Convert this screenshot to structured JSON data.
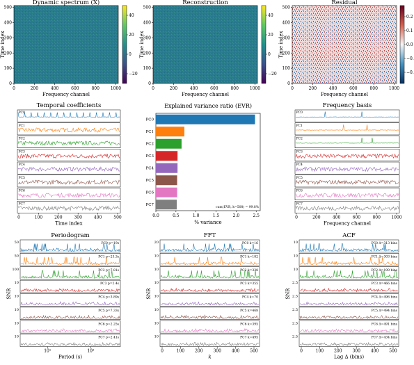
{
  "colors": {
    "pcs": [
      "#1f77b4",
      "#ff7f0e",
      "#2ca02c",
      "#d62728",
      "#9467bd",
      "#8c564b",
      "#e377c2",
      "#7f7f7f"
    ],
    "viridis_bg": "#2a7b8d",
    "residual_bg": "#f1e6e6"
  },
  "chart_data": [
    {
      "type": "heatmap",
      "title": "Dynamic spectrum (X)",
      "xlabel": "Frequency channel",
      "ylabel": "Time index",
      "xticks": [
        "0",
        "200",
        "400",
        "600",
        "800",
        "1000"
      ],
      "yticks": [
        "0",
        "100",
        "200",
        "300",
        "400",
        "500"
      ],
      "xlim": [
        0,
        1024
      ],
      "ylim": [
        0,
        512
      ],
      "colorbar_ticks": [
        "40",
        "20",
        "0",
        "−20"
      ],
      "colorbar_range": [
        -30,
        50
      ],
      "colormap": "viridis"
    },
    {
      "type": "heatmap",
      "title": "Reconstruction",
      "xlabel": "Frequency channel",
      "ylabel": "Time index",
      "xticks": [
        "0",
        "200",
        "400",
        "600",
        "800",
        "1000"
      ],
      "yticks": [
        "0",
        "100",
        "200",
        "300",
        "400",
        "500"
      ],
      "xlim": [
        0,
        1024
      ],
      "ylim": [
        0,
        512
      ],
      "colorbar_ticks": [
        "40",
        "20",
        "0",
        "−20"
      ],
      "colorbar_range": [
        -30,
        50
      ],
      "colormap": "viridis"
    },
    {
      "type": "heatmap",
      "title": "Residual",
      "xlabel": "Frequency channel",
      "ylabel": "Time index",
      "xticks": [
        "0",
        "200",
        "400",
        "600",
        "800",
        "1000"
      ],
      "yticks": [
        "0",
        "100",
        "200",
        "300",
        "400",
        "500"
      ],
      "xlim": [
        0,
        1024
      ],
      "ylim": [
        0,
        512
      ],
      "colorbar_ticks": [
        "0.2",
        "0.1",
        "0.0",
        "−0.1",
        "−0.2"
      ],
      "colorbar_range": [
        -0.28,
        0.28
      ],
      "colormap": "RdBu_r"
    },
    {
      "type": "line",
      "title": "Temporal coefficients",
      "xlabel": "Time index",
      "xticks": [
        "0",
        "100",
        "200",
        "300",
        "400",
        "500"
      ],
      "xlim": [
        0,
        512
      ],
      "series": [
        {
          "name": "PC0",
          "style": "spikes"
        },
        {
          "name": "PC1",
          "style": "noise"
        },
        {
          "name": "PC2",
          "style": "noise"
        },
        {
          "name": "PC3",
          "style": "noise"
        },
        {
          "name": "PC4",
          "style": "noise"
        },
        {
          "name": "PC5",
          "style": "noise"
        },
        {
          "name": "PC6",
          "style": "noise"
        },
        {
          "name": "PC7",
          "style": "noise"
        }
      ]
    },
    {
      "type": "bar",
      "title": "Explained variance ratio (EVR)",
      "xlabel": "% variance",
      "categories": [
        "PC0",
        "PC1",
        "PC2",
        "PC3",
        "PC4",
        "PC5",
        "PC6",
        "PC7"
      ],
      "values": [
        2.47,
        0.71,
        0.64,
        0.54,
        0.54,
        0.53,
        0.53,
        0.52
      ],
      "xlim": [
        0,
        2.6
      ],
      "xticks": [
        "0.0",
        "0.5",
        "1.0",
        "1.5",
        "2.0",
        "2.5"
      ],
      "annotation": "cum(EVR, k=508) = 99.8%"
    },
    {
      "type": "line",
      "title": "Frequency basis",
      "xlabel": "Frequency channel",
      "xticks": [
        "0",
        "200",
        "400",
        "600",
        "800",
        "1000"
      ],
      "xlim": [
        0,
        1024
      ],
      "series": [
        {
          "name": "PC0",
          "style": "spikes"
        },
        {
          "name": "PC1",
          "style": "spikes"
        },
        {
          "name": "PC2",
          "style": "spikes"
        },
        {
          "name": "PC3",
          "style": "noise"
        },
        {
          "name": "PC4",
          "style": "noise"
        },
        {
          "name": "PC5",
          "style": "noise"
        },
        {
          "name": "PC6",
          "style": "noise"
        },
        {
          "name": "PC7",
          "style": "noise"
        }
      ]
    },
    {
      "type": "line",
      "title": "Periodogram",
      "xlabel": "Period (s)",
      "ylabel": "SNR",
      "xscale": "log",
      "xticks": [
        "10¹",
        "10²"
      ],
      "series": [
        {
          "label": "PC0 p=19s",
          "ymax": "50"
        },
        {
          "label": "PC1 p=23.3s",
          "ymax": "50"
        },
        {
          "label": "PC2 p=7.81s",
          "ymax": "100"
        },
        {
          "label": "PC3 p=2.4s",
          "ymax": "10"
        },
        {
          "label": "PC4 p=3.89s",
          "ymax": "10"
        },
        {
          "label": "PC5 p=7.33s",
          "ymax": "10"
        },
        {
          "label": "PC6 p=2.25s",
          "ymax": "10"
        },
        {
          "label": "PC7 p=2.41s",
          "ymax": "10"
        }
      ]
    },
    {
      "type": "line",
      "title": "FFT",
      "xlabel": "k",
      "ylabel": "SNR",
      "xticks": [
        "0",
        "100",
        "200",
        "300",
        "400",
        "500"
      ],
      "xlim": [
        0,
        512
      ],
      "series": [
        {
          "label": "PC0 k=16",
          "ymax": "20"
        },
        {
          "label": "PC1 k=182",
          "ymax": "10"
        },
        {
          "label": "PC2 k=338",
          "ymax": "10"
        },
        {
          "label": "PC3 k=355",
          "ymax": "10"
        },
        {
          "label": "PC4 k=70",
          "ymax": "10"
        },
        {
          "label": "PC5 k=468",
          "ymax": "10"
        },
        {
          "label": "PC6 k=395",
          "ymax": "10"
        },
        {
          "label": "PC7 k=495",
          "ymax": "10"
        }
      ]
    },
    {
      "type": "line",
      "title": "ACF",
      "xlabel": "Lag Δ (bins)",
      "ylabel": "SNR",
      "xticks": [
        "0",
        "100",
        "200",
        "300",
        "400",
        "500"
      ],
      "xlim": [
        0,
        512
      ],
      "series": [
        {
          "label": "PC0 Δ=313 bins",
          "ymax": "10"
        },
        {
          "label": "PC1 Δ=303 bins",
          "ymax": "10"
        },
        {
          "label": "PC2 Δ=199 bins",
          "ymax": "10"
        },
        {
          "label": "PC3 Δ=466 bins",
          "ymax": "2.5"
        },
        {
          "label": "PC4 Δ=496 bins",
          "ymax": "2.5"
        },
        {
          "label": "PC5 Δ=494 bins",
          "ymax": "2.5"
        },
        {
          "label": "PC6 Δ=491 bins",
          "ymax": "2.5"
        },
        {
          "label": "PC7 Δ=434 bins",
          "ymax": "2.5"
        }
      ]
    }
  ]
}
